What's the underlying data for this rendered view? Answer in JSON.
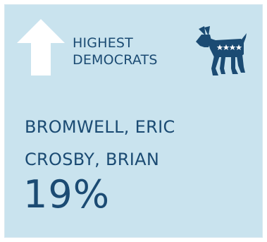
{
  "header": {
    "line1": "HIGHEST",
    "line2": "DEMOCRATS"
  },
  "names": [
    "BROMWELL, ERIC",
    "CROSBY, BRIAN"
  ],
  "percent": "19%",
  "icons": {
    "arrow": "arrow-up-icon",
    "party": "democrat-donkey-icon"
  },
  "colors": {
    "background": "#c9e3ee",
    "text": "#1b4b73",
    "arrow": "#ffffff"
  }
}
